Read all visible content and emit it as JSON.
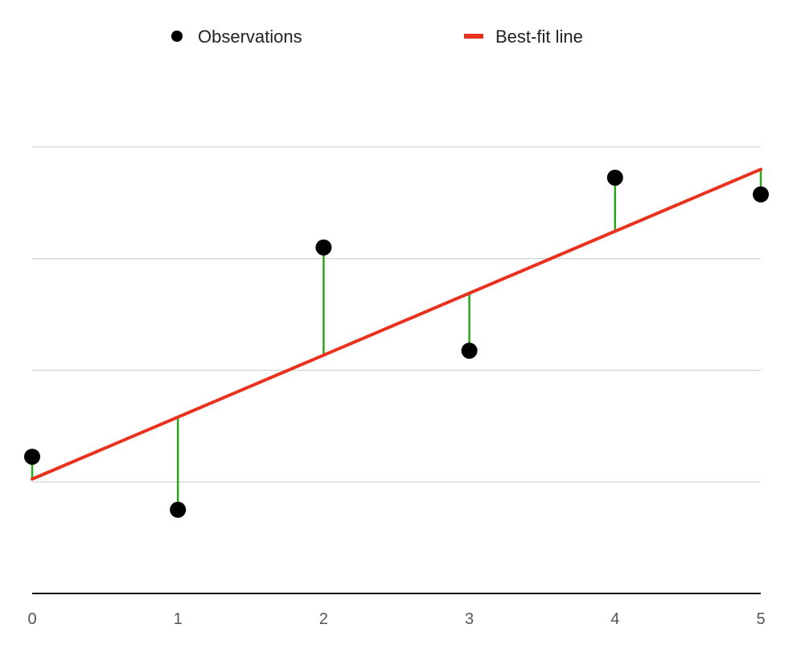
{
  "colors": {
    "points": "#000000",
    "fit_line": "#e8321e",
    "residuals": "#2aa81a",
    "grid": "#c8c8c8",
    "axis": "#111111",
    "text": "#222222",
    "tick_text": "#555555"
  },
  "chart_data": {
    "type": "scatter",
    "title": "",
    "xlabel": "",
    "ylabel": "",
    "legend_position": "top-center",
    "grid": true,
    "xlim": [
      0,
      5
    ],
    "ylim": [
      0,
      10
    ],
    "x_ticks": [
      "0",
      "1",
      "2",
      "3",
      "4",
      "5"
    ],
    "y_gridlines": [
      2,
      4,
      6,
      8
    ],
    "series": [
      {
        "name": "Observations",
        "kind": "points",
        "x": [
          0,
          1,
          2,
          3,
          4,
          5
        ],
        "y": [
          2.45,
          1.5,
          6.2,
          4.35,
          7.45,
          7.15
        ]
      },
      {
        "name": "Best-fit line",
        "kind": "line",
        "x": [
          0,
          5
        ],
        "y": [
          2.05,
          7.6
        ]
      }
    ],
    "residuals": {
      "from_series": "Observations",
      "to_series": "Best-fit line",
      "shown": true
    }
  }
}
